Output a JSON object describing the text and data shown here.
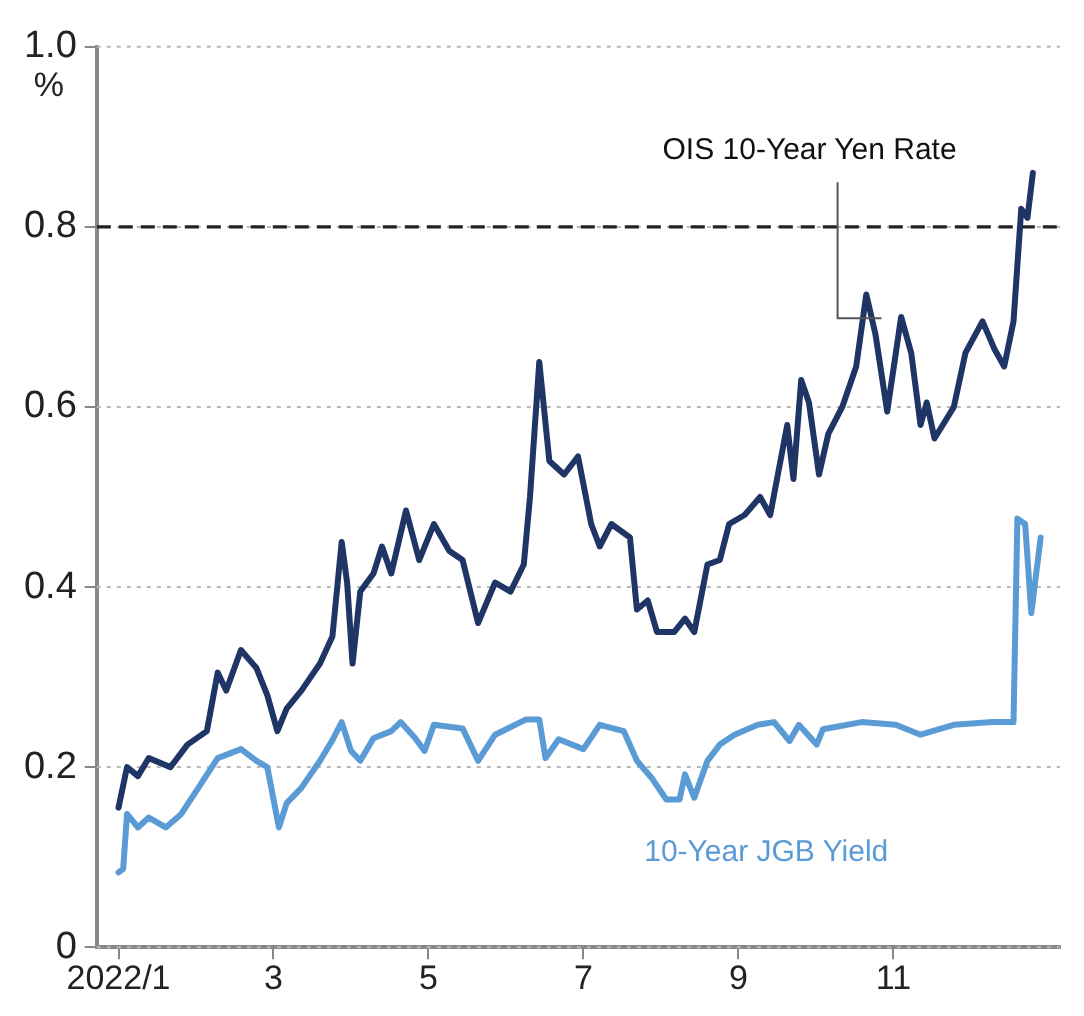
{
  "chart_data": {
    "type": "line",
    "ylabel": "%",
    "xlim": [
      0.72,
      13.15
    ],
    "xticks": [
      {
        "value": 1,
        "label": "2022/1"
      },
      3,
      5,
      7,
      9,
      11
    ],
    "ylim": [
      0,
      1
    ],
    "yticks": [
      0,
      0.2,
      0.4,
      0.6,
      0.8,
      {
        "value": 1,
        "label": "1.0"
      }
    ],
    "grid": "y",
    "marker": "none",
    "line_style": "solid",
    "ref_lines": [
      {
        "axis": "y",
        "value": 0.8,
        "color": "#222222",
        "line_style": "dashed"
      }
    ],
    "series": [
      {
        "name": "OIS 10-Year Yen Rate",
        "color": "#1f3565",
        "x": [
          1.0,
          1.11,
          1.25,
          1.39,
          1.67,
          1.89,
          2.14,
          2.28,
          2.39,
          2.58,
          2.78,
          2.92,
          3.05,
          3.17,
          3.36,
          3.6,
          3.76,
          3.88,
          3.95,
          4.02,
          4.12,
          4.29,
          4.4,
          4.52,
          4.71,
          4.88,
          5.07,
          5.27,
          5.44,
          5.64,
          5.86,
          6.06,
          6.23,
          6.31,
          6.43,
          6.56,
          6.75,
          6.93,
          7.1,
          7.21,
          7.36,
          7.6,
          7.69,
          7.83,
          7.95,
          8.17,
          8.31,
          8.43,
          8.6,
          8.76,
          8.88,
          9.08,
          9.28,
          9.41,
          9.63,
          9.71,
          9.81,
          9.91,
          10.04,
          10.16,
          10.34,
          10.52,
          10.65,
          10.77,
          10.92,
          11.1,
          11.23,
          11.35,
          11.43,
          11.53,
          11.78,
          11.93,
          12.15,
          12.3,
          12.43,
          12.55,
          12.65,
          12.73,
          12.8
        ],
        "values": [
          0.155,
          0.2,
          0.19,
          0.21,
          0.2,
          0.225,
          0.24,
          0.305,
          0.285,
          0.33,
          0.31,
          0.28,
          0.24,
          0.265,
          0.285,
          0.315,
          0.345,
          0.45,
          0.405,
          0.315,
          0.395,
          0.415,
          0.445,
          0.415,
          0.485,
          0.43,
          0.47,
          0.44,
          0.43,
          0.36,
          0.405,
          0.395,
          0.425,
          0.5,
          0.65,
          0.54,
          0.525,
          0.545,
          0.47,
          0.445,
          0.47,
          0.455,
          0.375,
          0.385,
          0.35,
          0.35,
          0.365,
          0.35,
          0.425,
          0.43,
          0.47,
          0.48,
          0.5,
          0.48,
          0.58,
          0.52,
          0.63,
          0.605,
          0.525,
          0.57,
          0.6,
          0.645,
          0.725,
          0.68,
          0.595,
          0.7,
          0.66,
          0.58,
          0.605,
          0.565,
          0.6,
          0.66,
          0.695,
          0.665,
          0.645,
          0.695,
          0.82,
          0.81,
          0.86
        ]
      },
      {
        "name": "10-Year JGB Yield",
        "color": "#5b9bd5",
        "x": [
          1.0,
          1.06,
          1.11,
          1.25,
          1.39,
          1.61,
          1.81,
          2.03,
          2.28,
          2.58,
          2.78,
          2.92,
          3.07,
          3.17,
          3.36,
          3.6,
          3.76,
          3.88,
          4.0,
          4.12,
          4.29,
          4.52,
          4.64,
          4.83,
          4.95,
          5.07,
          5.44,
          5.64,
          5.86,
          6.26,
          6.43,
          6.51,
          6.68,
          7.0,
          7.21,
          7.52,
          7.69,
          7.88,
          8.07,
          8.24,
          8.31,
          8.43,
          8.6,
          8.76,
          8.95,
          9.25,
          9.46,
          9.66,
          9.78,
          10.01,
          10.09,
          10.59,
          11.03,
          11.35,
          11.78,
          12.28,
          12.55,
          12.6,
          12.7,
          12.78,
          12.9
        ],
        "values": [
          0.083,
          0.087,
          0.148,
          0.133,
          0.144,
          0.133,
          0.148,
          0.177,
          0.21,
          0.22,
          0.207,
          0.2,
          0.133,
          0.16,
          0.177,
          0.207,
          0.23,
          0.25,
          0.218,
          0.207,
          0.232,
          0.24,
          0.25,
          0.232,
          0.218,
          0.247,
          0.243,
          0.207,
          0.236,
          0.253,
          0.253,
          0.21,
          0.231,
          0.22,
          0.247,
          0.24,
          0.207,
          0.188,
          0.164,
          0.164,
          0.192,
          0.166,
          0.207,
          0.225,
          0.236,
          0.247,
          0.25,
          0.229,
          0.247,
          0.225,
          0.242,
          0.25,
          0.247,
          0.236,
          0.247,
          0.25,
          0.25,
          0.476,
          0.47,
          0.371,
          0.455
        ]
      }
    ]
  }
}
